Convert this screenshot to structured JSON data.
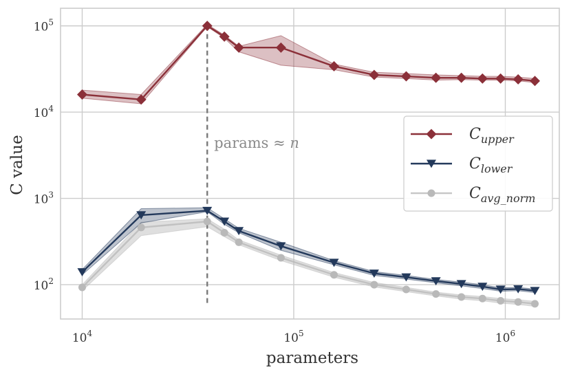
{
  "chart_data": {
    "type": "line",
    "title": "",
    "xlabel": "parameters",
    "ylabel": "C value",
    "xscale": "log",
    "yscale": "log",
    "xlim": [
      7900,
      1800000
    ],
    "ylim": [
      40,
      160000
    ],
    "grid": true,
    "legend_position": "center-right",
    "x": [
      10000,
      19000,
      39000,
      47000,
      55000,
      87000,
      155000,
      240000,
      340000,
      470000,
      620000,
      780000,
      950000,
      1150000,
      1380000
    ],
    "x_tick_exponents": [
      "4",
      "5",
      "6"
    ],
    "y_tick_exponents": [
      "2",
      "3",
      "4",
      "5"
    ],
    "tick_base": "10",
    "series": [
      {
        "name_main": "C",
        "name_sub": "upper",
        "color": "#8b3039",
        "marker": "diamond",
        "values": [
          16000,
          14000,
          100000,
          75000,
          56000,
          56000,
          34000,
          27000,
          26000,
          25000,
          25000,
          24500,
          24500,
          24000,
          23000
        ],
        "band_low": [
          14500,
          12500,
          98000,
          72000,
          50000,
          35000,
          31000,
          25500,
          24500,
          23500,
          23800,
          23500,
          23500,
          23000,
          22000
        ],
        "band_high": [
          18000,
          16000,
          104000,
          78000,
          58000,
          77000,
          36000,
          29000,
          28000,
          27000,
          26500,
          26000,
          26000,
          25500,
          24500
        ]
      },
      {
        "name_main": "C",
        "name_sub": "lower",
        "color": "#23395b",
        "marker": "triangle-down",
        "values": [
          140,
          640,
          720,
          540,
          420,
          280,
          180,
          135,
          122,
          110,
          102,
          95,
          88,
          89,
          85
        ],
        "band_low": [
          130,
          520,
          700,
          500,
          400,
          250,
          170,
          128,
          116,
          105,
          97,
          90,
          84,
          85,
          81
        ],
        "band_high": [
          150,
          760,
          780,
          580,
          450,
          310,
          190,
          142,
          128,
          115,
          107,
          100,
          92,
          93,
          89
        ]
      },
      {
        "name_main": "C",
        "name_sub": "avg_norm",
        "color": "#b9b9b9",
        "marker": "circle",
        "values": [
          93,
          460,
          540,
          400,
          310,
          205,
          130,
          100,
          88,
          78,
          72,
          69,
          65,
          63,
          60
        ],
        "band_low": [
          85,
          370,
          470,
          360,
          290,
          190,
          122,
          94,
          83,
          74,
          68,
          65,
          61,
          59,
          56
        ],
        "band_high": [
          100,
          530,
          580,
          440,
          330,
          220,
          138,
          106,
          93,
          82,
          76,
          73,
          69,
          67,
          64
        ]
      }
    ],
    "annotation": {
      "text_prefix": "params ≈ ",
      "text_var": "n",
      "x": 39000,
      "y_bottom": 60,
      "y_top": 100000
    }
  }
}
